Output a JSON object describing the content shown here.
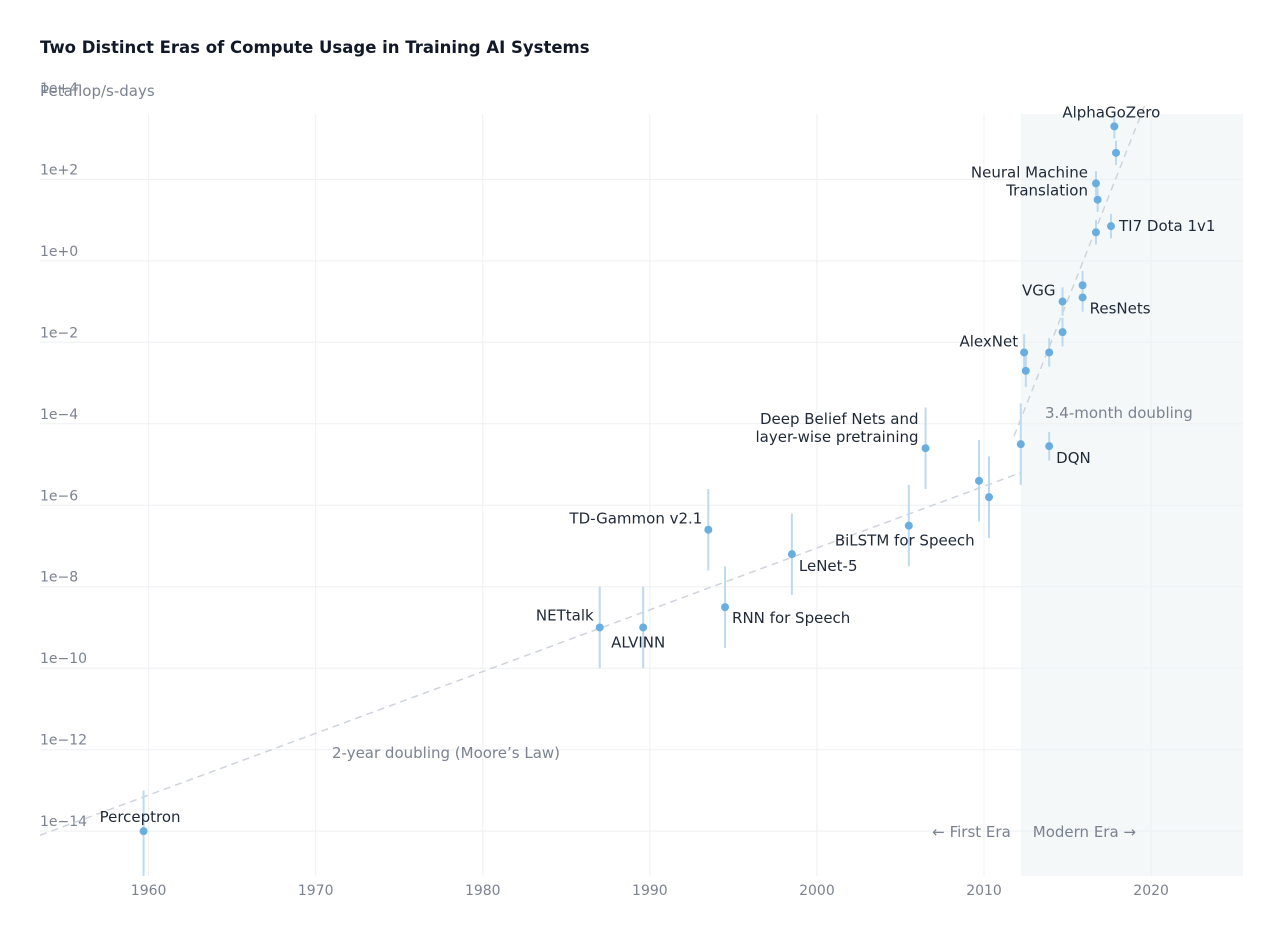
{
  "chart_data": {
    "type": "scatter",
    "title": "Two Distinct Eras of Compute Usage in Training AI Systems",
    "ylabel": "Petaflop/s-days",
    "xlabel": "",
    "y_scale": "log",
    "xlim": [
      1953.5,
      2025.5
    ],
    "ylim_log10": [
      -15.1,
      3.8
    ],
    "x_ticks": [
      {
        "value": 1960,
        "label": "1960"
      },
      {
        "value": 1970,
        "label": "1970"
      },
      {
        "value": 1980,
        "label": "1980"
      },
      {
        "value": 1990,
        "label": "1990"
      },
      {
        "value": 2000,
        "label": "2000"
      },
      {
        "value": 2010,
        "label": "2010"
      },
      {
        "value": 2020,
        "label": "2020"
      }
    ],
    "y_ticks": [
      {
        "exp": 4,
        "label": "1e+4"
      },
      {
        "exp": 2,
        "label": "1e+2"
      },
      {
        "exp": 0,
        "label": "1e+0"
      },
      {
        "exp": -2,
        "label": "1e−2"
      },
      {
        "exp": -4,
        "label": "1e−4"
      },
      {
        "exp": -6,
        "label": "1e−6"
      },
      {
        "exp": -8,
        "label": "1e−8"
      },
      {
        "exp": -10,
        "label": "1e−10"
      },
      {
        "exp": -12,
        "label": "1e−12"
      },
      {
        "exp": -14,
        "label": "1e−14"
      }
    ],
    "grid": true,
    "modern_era_start": 2012.2,
    "colors": {
      "point": "#6aaee0",
      "error_bar": "#bcdaf1",
      "trend": "#ced4dc",
      "modern_band": "#f4f8f9",
      "grid": "#eef0f3"
    },
    "points": [
      {
        "x": 1959.7,
        "y": -14.0,
        "lo": -15.1,
        "hi": -13.0,
        "label": "Perceptron"
      },
      {
        "x": 1987.0,
        "y": -9.0,
        "lo": -10.0,
        "hi": -8.0,
        "label": "NETtalk"
      },
      {
        "x": 1989.6,
        "y": -9.0,
        "lo": -10.0,
        "hi": -8.0,
        "label": "ALVINN"
      },
      {
        "x": 1993.5,
        "y": -6.6,
        "lo": -7.6,
        "hi": -5.6,
        "label": "TD-Gammon v2.1"
      },
      {
        "x": 1994.5,
        "y": -8.5,
        "lo": -9.5,
        "hi": -7.5,
        "label": "RNN for Speech"
      },
      {
        "x": 1998.5,
        "y": -7.2,
        "lo": -8.2,
        "hi": -6.2,
        "label": "LeNet-5"
      },
      {
        "x": 2005.5,
        "y": -6.5,
        "lo": -7.5,
        "hi": -5.5,
        "label": "BiLSTM for Speech"
      },
      {
        "x": 2006.5,
        "y": -4.6,
        "lo": -5.6,
        "hi": -3.6,
        "label": "Deep Belief Nets and layer-wise pretraining"
      },
      {
        "x": 2009.7,
        "y": -5.4,
        "lo": -6.4,
        "hi": -4.4,
        "label": ""
      },
      {
        "x": 2010.3,
        "y": -5.8,
        "lo": -6.8,
        "hi": -4.8,
        "label": ""
      },
      {
        "x": 2012.2,
        "y": -4.5,
        "lo": -5.5,
        "hi": -3.5,
        "label": ""
      },
      {
        "x": 2012.4,
        "y": -2.25,
        "lo": -2.7,
        "hi": -1.8,
        "label": "AlexNet"
      },
      {
        "x": 2012.5,
        "y": -2.7,
        "lo": -3.1,
        "hi": -2.3,
        "label": ""
      },
      {
        "x": 2013.9,
        "y": -2.25,
        "lo": -2.6,
        "hi": -1.9,
        "label": ""
      },
      {
        "x": 2013.9,
        "y": -4.55,
        "lo": -4.9,
        "hi": -4.2,
        "label": "DQN"
      },
      {
        "x": 2014.7,
        "y": -1.0,
        "lo": -1.35,
        "hi": -0.65,
        "label": "VGG"
      },
      {
        "x": 2014.7,
        "y": -1.75,
        "lo": -2.1,
        "hi": -1.4,
        "label": ""
      },
      {
        "x": 2015.9,
        "y": -0.6,
        "lo": -0.95,
        "hi": -0.25,
        "label": ""
      },
      {
        "x": 2015.9,
        "y": -0.9,
        "lo": -1.25,
        "hi": -0.55,
        "label": "ResNets"
      },
      {
        "x": 2016.7,
        "y": 1.9,
        "lo": 1.6,
        "hi": 2.2,
        "label": "Neural Machine Translation"
      },
      {
        "x": 2016.8,
        "y": 1.5,
        "lo": 1.2,
        "hi": 1.8,
        "label": ""
      },
      {
        "x": 2016.7,
        "y": 0.7,
        "lo": 0.4,
        "hi": 1.0,
        "label": ""
      },
      {
        "x": 2017.6,
        "y": 0.85,
        "lo": 0.55,
        "hi": 1.15,
        "label": "TI7 Dota 1v1"
      },
      {
        "x": 2017.8,
        "y": 3.3,
        "lo": 3.0,
        "hi": 3.6,
        "label": "AlphaGoZero"
      },
      {
        "x": 2017.9,
        "y": 2.65,
        "lo": 2.35,
        "hi": 2.95,
        "label": ""
      }
    ],
    "trends": [
      {
        "label": "2-year doubling (Moore’s Law)",
        "from": {
          "x": 1953.5,
          "y": -14.1
        },
        "to": {
          "x": 2012.2,
          "y": -5.2
        }
      },
      {
        "label": "3.4-month doubling",
        "from": {
          "x": 2011.8,
          "y": -4.3
        },
        "to": {
          "x": 2019.6,
          "y": 3.8
        }
      }
    ],
    "era_labels": {
      "first": "← First Era",
      "modern": "Modern Era →"
    }
  }
}
